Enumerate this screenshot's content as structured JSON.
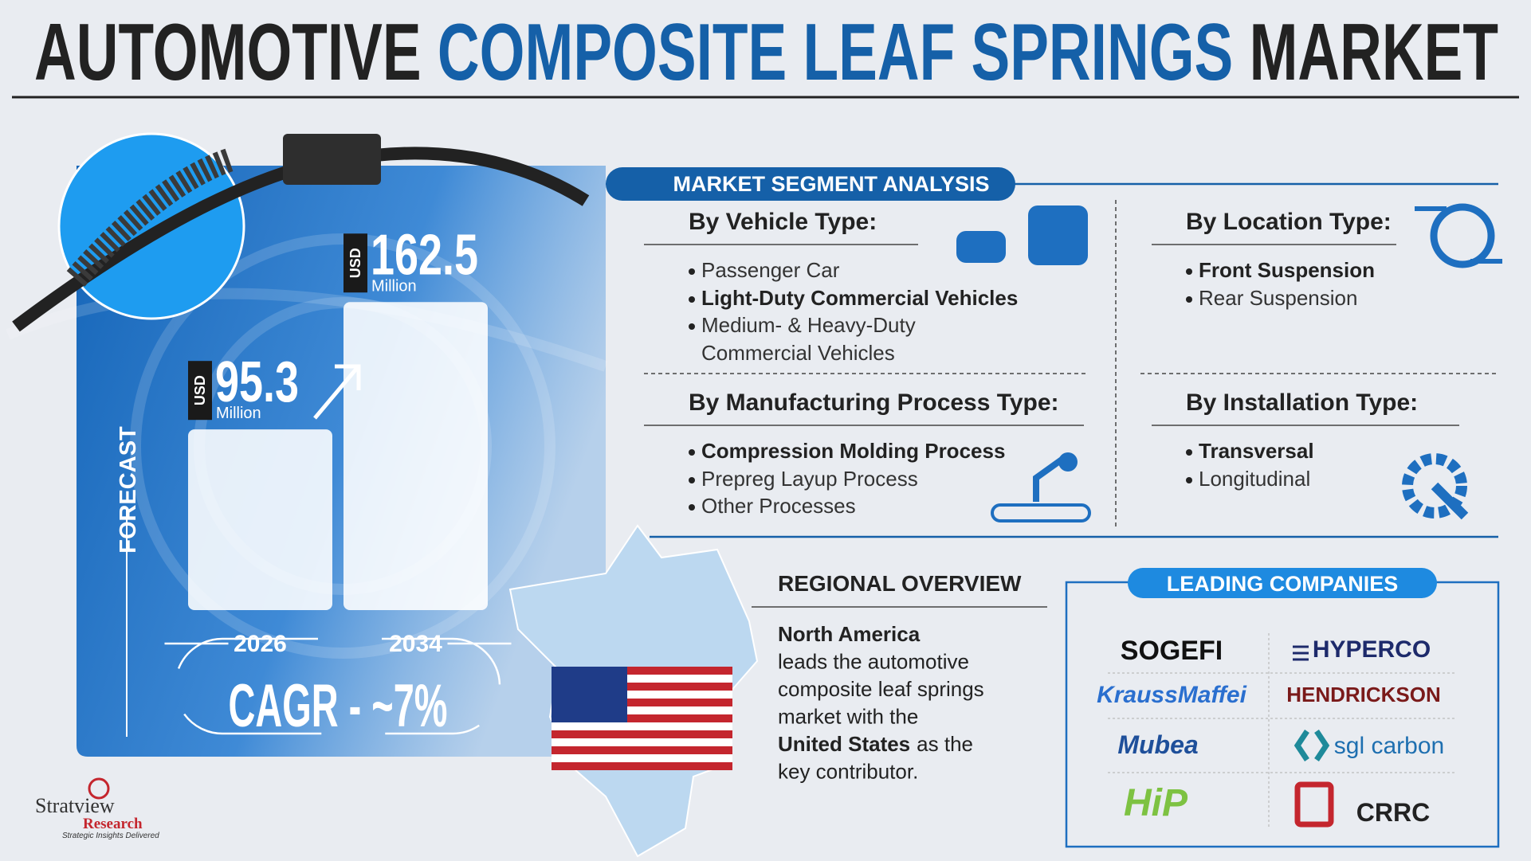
{
  "header": {
    "title_parts": [
      "AUTOMOTIVE",
      "COMPOSITE LEAF SPRINGS",
      "MARKET"
    ]
  },
  "forecast": {
    "label": "FORECAST",
    "bars": [
      {
        "year": "2026",
        "currency": "USD",
        "value": 95.3,
        "unit": "Million"
      },
      {
        "year": "2034",
        "currency": "USD",
        "value": 162.5,
        "unit": "Million"
      }
    ],
    "cagr": "CAGR - ~7%"
  },
  "segments": {
    "title": "MARKET SEGMENT ANALYSIS",
    "groups": [
      {
        "title": "By Vehicle Type:",
        "items": [
          {
            "text": "Passenger Car",
            "bold": false
          },
          {
            "text": "Light-Duty Commercial Vehicles",
            "bold": true
          },
          {
            "text": "Medium- & Heavy-Duty Commercial Vehicles",
            "bold": false
          }
        ]
      },
      {
        "title": "By Location Type:",
        "items": [
          {
            "text": "Front Suspension",
            "bold": true
          },
          {
            "text": "Rear Suspension",
            "bold": false
          }
        ]
      },
      {
        "title": "By Manufacturing Process Type:",
        "items": [
          {
            "text": "Compression Molding Process",
            "bold": true
          },
          {
            "text": "Prepreg Layup Process",
            "bold": false
          },
          {
            "text": "Other Processes",
            "bold": false
          }
        ]
      },
      {
        "title": "By Installation Type:",
        "items": [
          {
            "text": "Transversal",
            "bold": true
          },
          {
            "text": "Longitudinal",
            "bold": false
          }
        ]
      }
    ]
  },
  "regional": {
    "title": "REGIONAL OVERVIEW",
    "lines": [
      [
        {
          "text": "North America",
          "bold": true
        }
      ],
      [
        {
          "text": "leads the automotive",
          "bold": false
        }
      ],
      [
        {
          "text": "composite leaf springs",
          "bold": false
        }
      ],
      [
        {
          "text": "market with the",
          "bold": false
        }
      ],
      [
        {
          "text": "United States",
          "bold": true
        },
        {
          "text": "as the",
          "bold": false
        }
      ],
      [
        {
          "text": "key contributor.",
          "bold": false
        }
      ]
    ]
  },
  "companies": {
    "title": "LEADING COMPANIES",
    "names": [
      "SOGEFI",
      "HYPERCO",
      "KraussMaffei",
      "HENDRICKSON",
      "Mubea",
      "sgl carbon",
      "HiP",
      "CRRC"
    ]
  },
  "brand": {
    "name": "Stratview",
    "sub": "Research",
    "tagline": "Strategic Insights Delivered"
  }
}
